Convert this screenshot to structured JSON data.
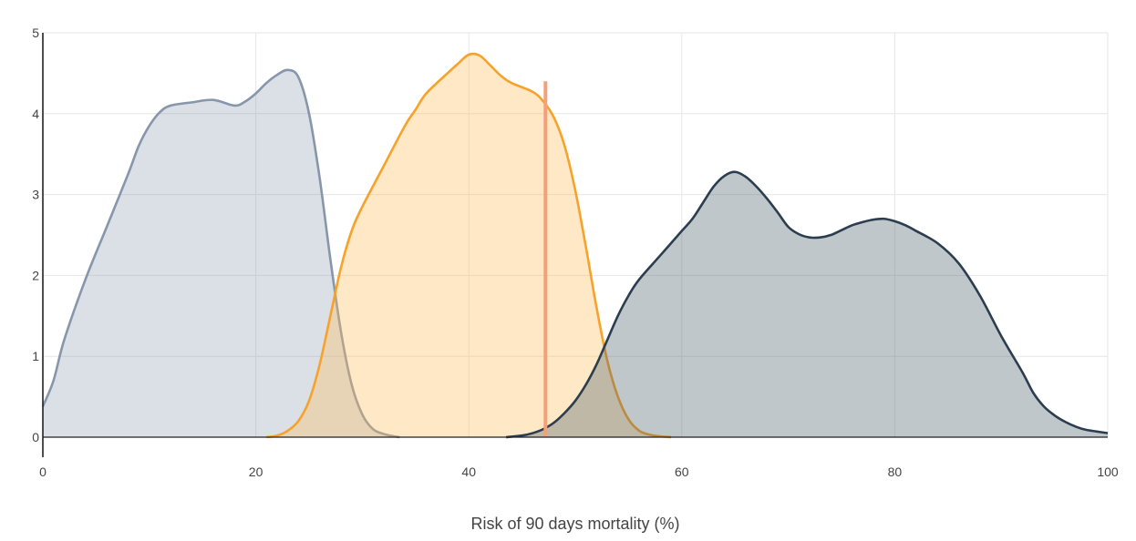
{
  "chart_data": {
    "type": "area",
    "title": "",
    "xlabel": "Risk of 90 days mortality (%)",
    "ylabel": "",
    "xlim": [
      0,
      100
    ],
    "ylim": [
      0,
      5
    ],
    "grid": true,
    "xticks": [
      0,
      20,
      40,
      60,
      80,
      100
    ],
    "yticks": [
      0,
      1,
      2,
      3,
      4,
      5
    ],
    "series": [
      {
        "color": "#8896ab",
        "fill": "rgba(136,150,171,0.30)",
        "x": [
          0,
          1,
          2,
          4,
          6,
          8,
          9,
          10,
          11,
          12,
          14,
          16,
          18,
          19,
          20,
          21,
          22,
          23,
          24,
          25,
          26,
          27,
          28,
          29,
          30,
          31,
          32,
          33,
          33.5
        ],
        "y": [
          0.38,
          0.7,
          1.2,
          1.95,
          2.6,
          3.25,
          3.6,
          3.85,
          4.02,
          4.1,
          4.14,
          4.17,
          4.1,
          4.15,
          4.25,
          4.38,
          4.48,
          4.54,
          4.45,
          4.0,
          3.2,
          2.2,
          1.3,
          0.65,
          0.28,
          0.1,
          0.04,
          0.01,
          0
        ]
      },
      {
        "color": "#f6a22b",
        "fill": "rgba(255,190,90,0.35)",
        "x": [
          21,
          22,
          23,
          24,
          25,
          26,
          27,
          28,
          29,
          30,
          32,
          34,
          35,
          36,
          38,
          39,
          40,
          41,
          42,
          43,
          44,
          46,
          47,
          48,
          49,
          50,
          51,
          52,
          53,
          54,
          55,
          56,
          57,
          58,
          59
        ],
        "y": [
          0,
          0.02,
          0.08,
          0.2,
          0.45,
          0.9,
          1.5,
          2.1,
          2.55,
          2.85,
          3.35,
          3.85,
          4.05,
          4.25,
          4.5,
          4.62,
          4.73,
          4.72,
          4.6,
          4.47,
          4.38,
          4.27,
          4.15,
          3.95,
          3.6,
          3.05,
          2.35,
          1.6,
          0.95,
          0.5,
          0.22,
          0.08,
          0.03,
          0.01,
          0
        ]
      },
      {
        "color": "#2b3d4f",
        "fill": "rgba(80,100,110,0.36)",
        "x": [
          43.5,
          45,
          46,
          47,
          48,
          49,
          50,
          51,
          52,
          53,
          54,
          55,
          56,
          58,
          60,
          61,
          62,
          63,
          64,
          65,
          66,
          67,
          68,
          69,
          70,
          71,
          72,
          73,
          74,
          75,
          76,
          77,
          78,
          79,
          80,
          81,
          82,
          84,
          86,
          88,
          90,
          92,
          93,
          94,
          95,
          96,
          97,
          98,
          100
        ],
        "y": [
          0,
          0.02,
          0.05,
          0.1,
          0.18,
          0.3,
          0.45,
          0.65,
          0.9,
          1.2,
          1.5,
          1.75,
          1.95,
          2.25,
          2.55,
          2.7,
          2.9,
          3.1,
          3.23,
          3.28,
          3.22,
          3.1,
          2.95,
          2.78,
          2.6,
          2.51,
          2.47,
          2.47,
          2.5,
          2.56,
          2.62,
          2.66,
          2.69,
          2.7,
          2.67,
          2.62,
          2.55,
          2.4,
          2.15,
          1.75,
          1.25,
          0.8,
          0.55,
          0.38,
          0.27,
          0.19,
          0.13,
          0.09,
          0.05
        ]
      }
    ],
    "marker_line": {
      "x": 47.2,
      "y_top": 4.4,
      "color": "#f4a07a"
    }
  }
}
